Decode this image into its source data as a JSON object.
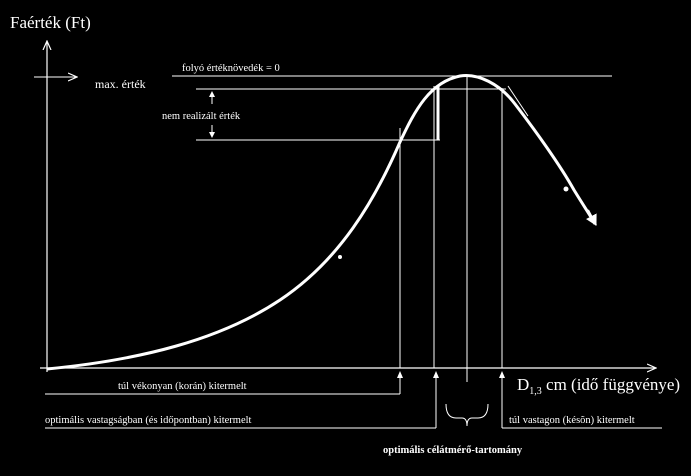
{
  "labels": {
    "y_axis": "Faérték (Ft)",
    "x_axis_main": "D",
    "x_axis_sub": "1,3",
    "x_axis_rest": " cm (idő függvénye)",
    "max_value": "max. érték",
    "marginal_zero": "folyó értéknövedék = 0",
    "unrealized": "nem realizált  érték",
    "too_thin": "túl vékonyan (korán) kitermelt",
    "optimal_cut": "optimális vastagságban (és időpontban) kitermelt",
    "too_thick": "túl vastagon (késõn) kitermelt",
    "optimal_range": "optimális célátmérő-tartomány"
  },
  "colors": {
    "background": "#000000",
    "foreground": "#ffffff"
  }
}
